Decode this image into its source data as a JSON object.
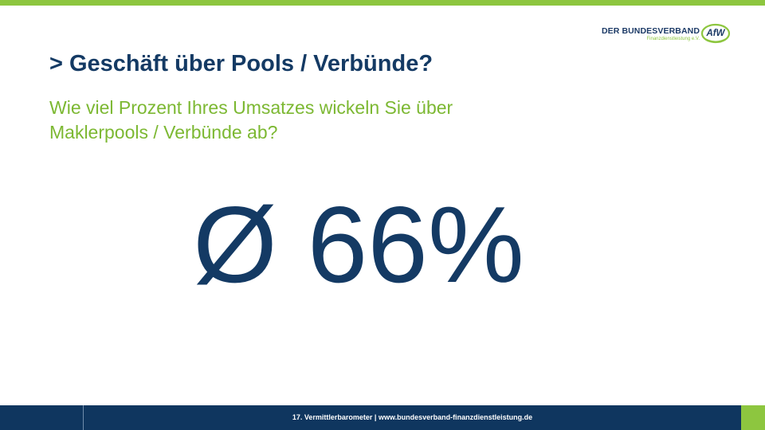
{
  "header": {
    "logo": {
      "main_text": "DER BUNDESVERBAND",
      "sub_text": "Finanzdienstleistung e.V.",
      "badge_text": "AfW"
    }
  },
  "slide": {
    "title": "> Geschäft über Pools / Verbünde?",
    "question_lines": [
      "Wie viel Prozent Ihres Umsatzes wickeln Sie über",
      "Maklerpools / Verbünde ab?"
    ],
    "big_value": "Ø 66%"
  },
  "footer": {
    "text": "17. Vermittlerbarometer | www.bundesverband-finanzdienstleistung.de"
  },
  "colors": {
    "navy": "#143a64",
    "green": "#8dc63f",
    "footer_bg": "#0f365f"
  }
}
